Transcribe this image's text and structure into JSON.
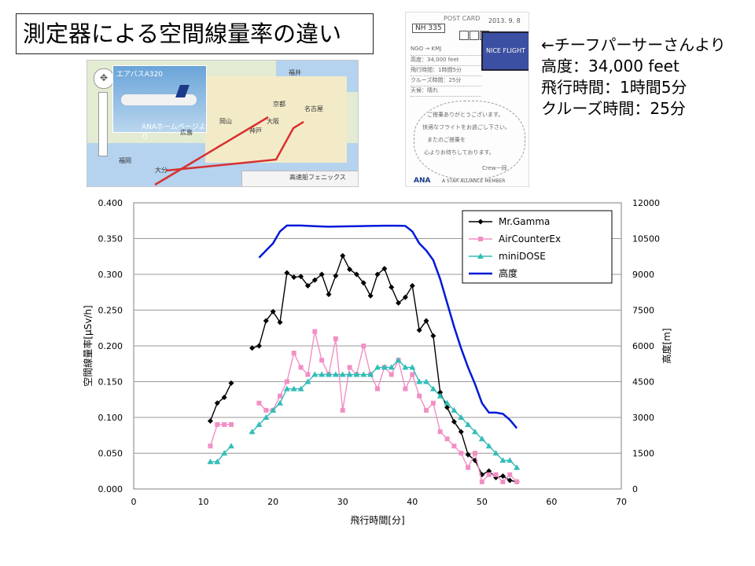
{
  "title": "測定器による空間線量率の違い",
  "map": {
    "photo_caption": "エアバスA320",
    "photo_link": "ANAホームページより",
    "ferry_label": "高速船フェニックス",
    "place_labels": [
      "広島",
      "岡山",
      "大阪",
      "名古屋",
      "福井",
      "京都",
      "神戸",
      "福岡",
      "大分"
    ]
  },
  "postcard": {
    "header": "POST CARD",
    "date": "2013. 9. 8",
    "flight": "NH 335",
    "stamp": "NICE FLIGHT",
    "route": "NGO → KMJ",
    "lines": [
      "高度：34,000 feet",
      "飛行時間：1時間5分",
      "クルーズ時間：25分",
      "天候：晴れ"
    ],
    "message": [
      "ご搭乗ありがとうございます。",
      "快適なフライトをお過ごし下さい。",
      "またのご搭乗を",
      "心よりお待ちしております。",
      "Crew一同"
    ],
    "brand": "ANA",
    "alliance": "A STAR ALLIANCE MEMBER"
  },
  "info": {
    "line1": "←チーフパーサーさんより",
    "line2": "高度：34,000 feet",
    "line3": "飛行時間：1時間5分",
    "line4": "クルーズ時間：25分"
  },
  "chart_data": {
    "type": "line",
    "xlabel": "飛行時間[分]",
    "ylabel": "空間線量率[μSv/h]",
    "y2label": "高度[m]",
    "xlim": [
      0,
      70
    ],
    "ylim": [
      0,
      0.4
    ],
    "y2lim": [
      0,
      12000
    ],
    "x_ticks": [
      0,
      10,
      20,
      30,
      40,
      50,
      60,
      70
    ],
    "y_ticks": [
      "0.000",
      "0.050",
      "0.100",
      "0.150",
      "0.200",
      "0.250",
      "0.300",
      "0.350",
      "0.400"
    ],
    "y2_ticks": [
      "0",
      "1500",
      "3000",
      "4500",
      "6000",
      "7500",
      "9000",
      "10500",
      "12000"
    ],
    "legend_position": "top-right",
    "grid": "horizontal",
    "series": [
      {
        "name": "Mr.Gamma",
        "color": "#000000",
        "marker": "diamond",
        "axis": "left",
        "x": [
          11,
          12,
          13,
          14,
          17,
          18,
          19,
          20,
          21,
          22,
          23,
          24,
          25,
          26,
          27,
          28,
          29,
          30,
          31,
          32,
          33,
          34,
          35,
          36,
          37,
          38,
          39,
          40,
          41,
          42,
          43,
          44,
          45,
          46,
          47,
          48,
          49,
          50,
          51,
          52,
          53,
          54,
          55
        ],
        "y": [
          0.095,
          0.12,
          0.128,
          0.148,
          0.197,
          0.2,
          0.235,
          0.248,
          0.233,
          0.302,
          0.296,
          0.297,
          0.284,
          0.292,
          0.3,
          0.272,
          0.298,
          0.326,
          0.307,
          0.3,
          0.288,
          0.27,
          0.3,
          0.308,
          0.282,
          0.26,
          0.268,
          0.284,
          0.222,
          0.235,
          0.214,
          0.135,
          0.114,
          0.094,
          0.08,
          0.048,
          0.04,
          0.02,
          0.025,
          0.016,
          0.018,
          0.012,
          0.01
        ],
        "breaks_after": [
          14
        ]
      },
      {
        "name": "AirCounterEx",
        "color": "#f28fc4",
        "marker": "square",
        "axis": "left",
        "x": [
          11,
          12,
          13,
          14,
          18,
          19,
          20,
          21,
          22,
          23,
          24,
          25,
          26,
          27,
          28,
          29,
          30,
          31,
          32,
          33,
          34,
          35,
          36,
          37,
          38,
          39,
          40,
          41,
          42,
          43,
          44,
          45,
          46,
          47,
          48,
          49,
          50,
          51,
          52,
          53,
          54,
          55
        ],
        "y": [
          0.06,
          0.09,
          0.09,
          0.09,
          0.12,
          0.11,
          0.11,
          0.13,
          0.15,
          0.19,
          0.17,
          0.16,
          0.22,
          0.18,
          0.16,
          0.21,
          0.11,
          0.17,
          0.16,
          0.2,
          0.16,
          0.14,
          0.17,
          0.16,
          0.18,
          0.14,
          0.16,
          0.13,
          0.11,
          0.12,
          0.08,
          0.07,
          0.06,
          0.05,
          0.03,
          0.05,
          0.01,
          0.02,
          0.02,
          0.01,
          0.02,
          0.01
        ],
        "breaks_after": [
          14
        ]
      },
      {
        "name": "miniDOSE",
        "color": "#33bcb8",
        "marker": "triangle",
        "axis": "left",
        "x": [
          11,
          12,
          13,
          14,
          17,
          18,
          19,
          20,
          21,
          22,
          23,
          24,
          25,
          26,
          27,
          28,
          29,
          30,
          31,
          32,
          33,
          34,
          35,
          36,
          37,
          38,
          39,
          40,
          41,
          42,
          43,
          44,
          45,
          46,
          47,
          48,
          49,
          50,
          51,
          52,
          53,
          54,
          55
        ],
        "y": [
          0.038,
          0.038,
          0.05,
          0.06,
          0.08,
          0.09,
          0.1,
          0.11,
          0.12,
          0.14,
          0.14,
          0.14,
          0.15,
          0.16,
          0.16,
          0.16,
          0.16,
          0.16,
          0.16,
          0.16,
          0.16,
          0.16,
          0.17,
          0.17,
          0.17,
          0.18,
          0.17,
          0.17,
          0.15,
          0.15,
          0.14,
          0.13,
          0.12,
          0.11,
          0.1,
          0.09,
          0.08,
          0.07,
          0.06,
          0.05,
          0.04,
          0.04,
          0.03
        ],
        "breaks_after": [
          14
        ]
      },
      {
        "name": "高度",
        "color": "#0018d8",
        "marker": "none",
        "axis": "right",
        "x": [
          18,
          20,
          21,
          22,
          24,
          26,
          28,
          30,
          32,
          34,
          36,
          38,
          39,
          40,
          41,
          42,
          43,
          44,
          45,
          46,
          47,
          48,
          49,
          50,
          51,
          52,
          53,
          54,
          55
        ],
        "y": [
          9700,
          10300,
          10800,
          11050,
          11050,
          11020,
          11000,
          11010,
          11020,
          11030,
          11040,
          11040,
          11030,
          10800,
          10300,
          10000,
          9600,
          8800,
          7800,
          6800,
          5900,
          5100,
          4400,
          3600,
          3200,
          3200,
          3150,
          2900,
          2550
        ],
        "breaks_after": []
      }
    ]
  }
}
